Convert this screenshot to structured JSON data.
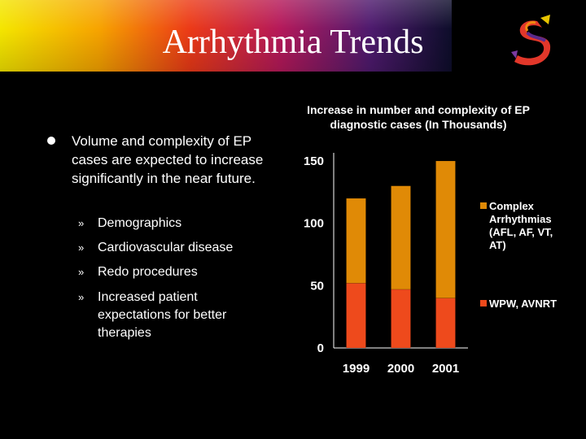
{
  "slide": {
    "title": "Arrhythmia Trends",
    "bullet": "Volume and complexity of EP cases are expected to increase significantly in the near future.",
    "sub_bullet_marker": "»",
    "sub_bullets": [
      "Demographics",
      "Cardiovascular disease",
      "Redo procedures",
      "Increased patient expectations for better therapies"
    ]
  },
  "colors": {
    "complex": "#e08a06",
    "wpw": "#ee4a1c",
    "axis": "#ffffff",
    "text": "#ffffff"
  },
  "chart_data": {
    "type": "bar",
    "stacked": true,
    "title": "Increase in number and complexity of EP diagnostic cases (In Thousands)",
    "categories": [
      "1999",
      "2000",
      "2001"
    ],
    "series": [
      {
        "name": "WPW, AVNRT",
        "values": [
          52,
          47,
          40
        ]
      },
      {
        "name": "Complex Arrhythmias (AFL, AF, VT, AT)",
        "values": [
          68,
          83,
          110
        ]
      }
    ],
    "ylim": [
      0,
      150
    ],
    "yticks": [
      0,
      50,
      100,
      150
    ],
    "xlabel": "",
    "ylabel": "",
    "grid": false,
    "legend_position": "right"
  }
}
